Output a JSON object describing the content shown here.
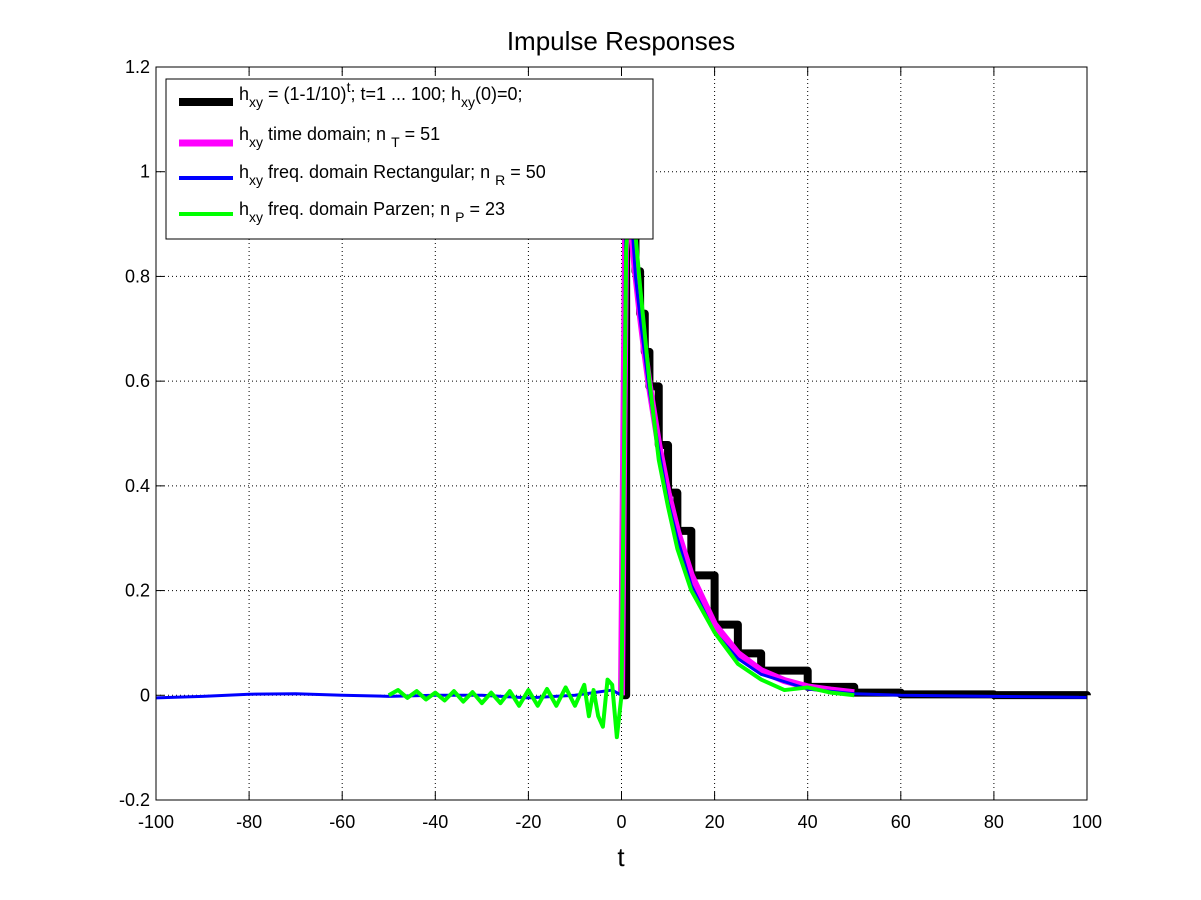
{
  "chart_data": {
    "type": "line",
    "title": "Impulse Responses",
    "xlabel": "t",
    "ylabel": "",
    "xlim": [
      -100,
      100
    ],
    "ylim": [
      -0.2,
      1.2
    ],
    "xticks": [
      -100,
      -80,
      -60,
      -40,
      -20,
      0,
      20,
      40,
      60,
      80,
      100
    ],
    "yticks": [
      -0.2,
      0,
      0.2,
      0.4,
      0.6,
      0.8,
      1,
      1.2
    ],
    "xtick_labels": [
      "-100",
      "-80",
      "-60",
      "-40",
      "-20",
      "0",
      "20",
      "40",
      "60",
      "80",
      "100"
    ],
    "ytick_labels": [
      "-0.2",
      "0",
      "0.2",
      "0.4",
      "0.6",
      "0.8",
      "1",
      "1.2"
    ],
    "grid": true,
    "legend_position": "top-left",
    "series": [
      {
        "name": "h_xy = (1-1/10)^t; t=1 ... 100; h_xy(0)=0;",
        "color": "#000000",
        "style": "stairs",
        "x": [
          0,
          1,
          2,
          3,
          4,
          5,
          6,
          8,
          10,
          12,
          15,
          20,
          25,
          30,
          40,
          50,
          60,
          80,
          100
        ],
        "y": [
          0,
          1.0,
          0.9,
          0.81,
          0.729,
          0.656,
          0.59,
          0.478,
          0.387,
          0.314,
          0.229,
          0.135,
          0.08,
          0.047,
          0.016,
          0.0052,
          0.0018,
          0.0002,
          0.0
        ]
      },
      {
        "name": "h_xy time domain; n_T = 51",
        "color": "#ff00ff",
        "style": "line",
        "x": [
          0,
          1,
          2,
          3,
          4,
          5,
          6,
          8,
          10,
          12,
          15,
          20,
          25,
          30,
          35,
          40,
          45,
          50
        ],
        "y": [
          0,
          1.0,
          0.9,
          0.81,
          0.729,
          0.656,
          0.59,
          0.478,
          0.387,
          0.314,
          0.229,
          0.135,
          0.08,
          0.047,
          0.028,
          0.016,
          0.01,
          0.005
        ]
      },
      {
        "name": "h_xy freq. domain Rectangular; n_R = 50",
        "color": "#0000ff",
        "style": "line",
        "x": [
          -100,
          -90,
          -80,
          -70,
          -60,
          -50,
          -40,
          -30,
          -20,
          -10,
          -2,
          0,
          1,
          2,
          3,
          4,
          6,
          8,
          10,
          12,
          15,
          20,
          25,
          30,
          40,
          50,
          60,
          80,
          100
        ],
        "y": [
          -0.005,
          -0.002,
          0.002,
          0.003,
          0.0,
          -0.002,
          0.0,
          0.0,
          -0.005,
          0.0,
          0.01,
          0.0,
          0.98,
          0.93,
          0.8,
          0.72,
          0.58,
          0.47,
          0.37,
          0.3,
          0.21,
          0.12,
          0.07,
          0.04,
          0.012,
          0.003,
          0.0,
          -0.002,
          -0.004
        ]
      },
      {
        "name": "h_xy freq. domain Parzen; n_P = 23",
        "color": "#00ff00",
        "style": "line",
        "x": [
          -50,
          -48,
          -46,
          -44,
          -42,
          -40,
          -38,
          -36,
          -34,
          -32,
          -30,
          -28,
          -26,
          -24,
          -22,
          -20,
          -18,
          -16,
          -14,
          -12,
          -10,
          -8,
          -7,
          -6,
          -5,
          -4,
          -3,
          -2,
          -1,
          0,
          1,
          2,
          3,
          4,
          6,
          8,
          10,
          12,
          15,
          20,
          25,
          30,
          35,
          40,
          45,
          50
        ],
        "y": [
          0.0,
          0.01,
          -0.005,
          0.008,
          -0.008,
          0.005,
          -0.01,
          0.008,
          -0.012,
          0.006,
          -0.015,
          0.005,
          -0.015,
          0.008,
          -0.02,
          0.01,
          -0.02,
          0.012,
          -0.02,
          0.015,
          -0.02,
          0.02,
          -0.04,
          0.01,
          -0.04,
          -0.06,
          0.03,
          0.02,
          -0.08,
          0.0,
          0.85,
          1.0,
          0.88,
          0.78,
          0.6,
          0.45,
          0.36,
          0.28,
          0.2,
          0.12,
          0.06,
          0.03,
          0.01,
          0.015,
          0.005,
          0.0
        ]
      }
    ]
  }
}
